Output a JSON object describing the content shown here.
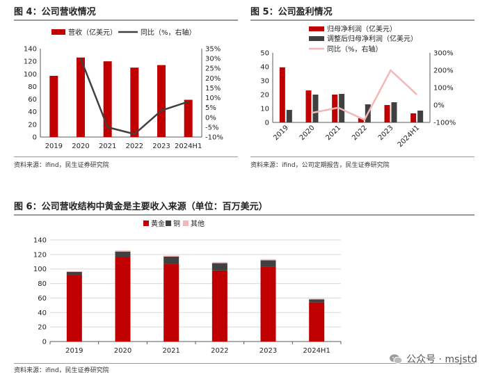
{
  "colors": {
    "red": "#C00000",
    "dark": "#404040",
    "pink": "#F4B6B6",
    "grid": "#D9D9D9"
  },
  "fig4": {
    "title": "图 4：公司营收情况",
    "source": "资料来源：ifind，民生证券研究院",
    "chart_data": {
      "type": "bar+line",
      "categories": [
        "2019",
        "2020",
        "2021",
        "2022",
        "2023",
        "2024H1"
      ],
      "series": [
        {
          "name": "营收（亿美元）",
          "type": "bar",
          "axis": "left",
          "values": [
            97,
            126,
            120,
            110,
            114,
            59
          ]
        },
        {
          "name": "同比（%，右轴）",
          "type": "line",
          "axis": "right",
          "values": [
            null,
            30,
            -5,
            -8.5,
            3.5,
            8
          ]
        }
      ],
      "ylim": [
        0,
        140
      ],
      "yticks": [
        0,
        20,
        40,
        60,
        80,
        100,
        120,
        140
      ],
      "y2lim": [
        -10,
        35
      ],
      "y2ticks": [
        "-10%",
        "-5%",
        "0%",
        "5%",
        "10%",
        "15%",
        "20%",
        "25%",
        "30%",
        "35%"
      ],
      "legend": "top"
    }
  },
  "fig5": {
    "title": "图 5：公司盈利情况",
    "source": "资料来源：ifind，公司定期报告，民生证券研究院",
    "chart_data": {
      "type": "bar+line",
      "categories": [
        "2019",
        "2020",
        "2021",
        "2022",
        "2023",
        "2024H1"
      ],
      "series": [
        {
          "name": "归母净利润（亿美元）",
          "type": "bar",
          "axis": "left",
          "values": [
            39.6,
            23,
            20,
            3,
            12.5,
            6.5
          ]
        },
        {
          "name": "调整后归母净利润（亿美元）",
          "type": "bar",
          "axis": "left",
          "values": [
            9,
            20,
            20.5,
            13,
            14.5,
            8.5
          ]
        },
        {
          "name": "同比（%，右轴）",
          "type": "line",
          "axis": "right",
          "values": [
            null,
            -45,
            -15,
            -85,
            200,
            60
          ]
        }
      ],
      "ylim": [
        0,
        50
      ],
      "yticks": [
        0,
        10,
        20,
        30,
        40,
        50
      ],
      "y2lim": [
        -100,
        300
      ],
      "y2ticks": [
        "-100%",
        "0%",
        "100%",
        "200%",
        "300%"
      ],
      "legend": "top-right"
    }
  },
  "fig6": {
    "title": "图 6：公司营收结构中黄金是主要收入来源（单位：百万美元）",
    "source": "资料来源：ifind，民生证券研究院",
    "chart_data": {
      "type": "stacked-bar",
      "categories": [
        "2019",
        "2020",
        "2021",
        "2022",
        "2023",
        "2024H1"
      ],
      "series": [
        {
          "name": "黄金",
          "values": [
            92,
            116,
            107,
            98,
            103,
            54
          ]
        },
        {
          "name": "铜",
          "values": [
            4,
            8,
            10,
            10,
            9,
            4
          ]
        },
        {
          "name": "其他",
          "values": [
            1,
            1.5,
            1.5,
            1.5,
            1.5,
            1
          ]
        }
      ],
      "ylim": [
        0,
        140
      ],
      "yticks": [
        0,
        20,
        40,
        60,
        80,
        100,
        120,
        140
      ],
      "legend": "top"
    }
  },
  "watermark": {
    "text": "公众号 · msjstd"
  }
}
